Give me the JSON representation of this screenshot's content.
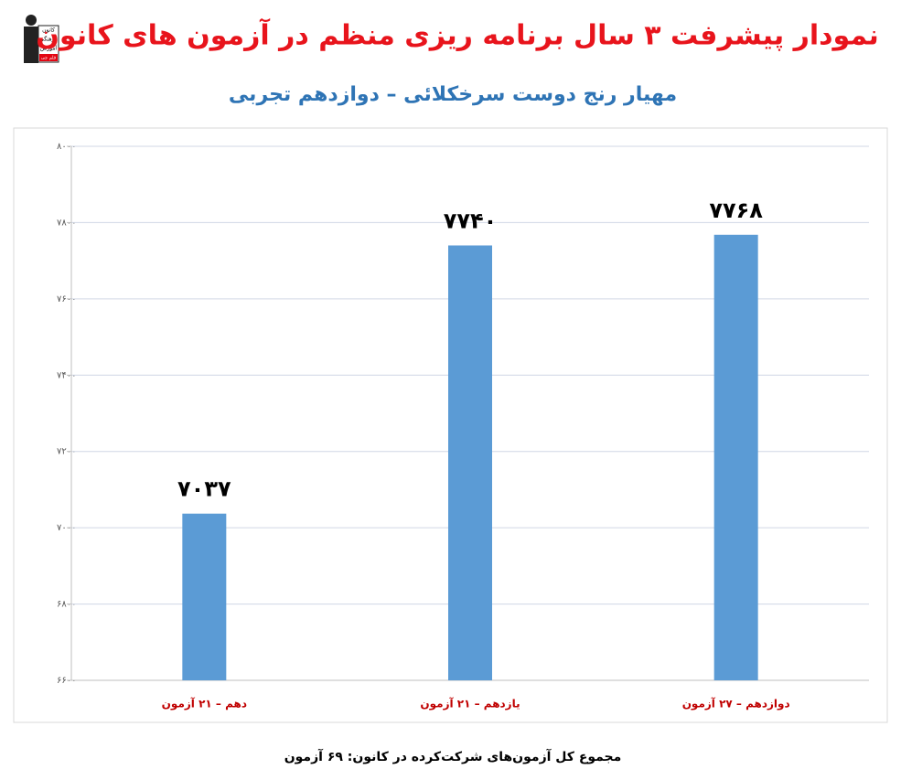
{
  "chart_data": {
    "type": "bar",
    "title": "نمودار پیشرفت ۳ سال برنامه ریزی منظم در آزمون های کانون",
    "subtitle": "مهیار رنج دوست سرخکلائی – دوازدهم تجربی",
    "categories": [
      "دهم – ۲۱ آزمون",
      "یازدهم – ۲۱ آزمون",
      "دوازدهم – ۲۷ آزمون"
    ],
    "values": [
      7037,
      7740,
      7768
    ],
    "value_labels": [
      "۷۰۳۷",
      "۷۷۴۰",
      "۷۷۶۸"
    ],
    "color": "#5b9bd5",
    "ylim": [
      6600,
      8000
    ],
    "yticks": [
      {
        "value": 6600,
        "label": "۶۶۰۰"
      },
      {
        "value": 6800,
        "label": "۶۸۰۰"
      },
      {
        "value": 7000,
        "label": "۷۰۰۰"
      },
      {
        "value": 7200,
        "label": "۷۲۰۰"
      },
      {
        "value": 7400,
        "label": "۷۴۰۰"
      },
      {
        "value": 7600,
        "label": "۷۶۰۰"
      },
      {
        "value": 7800,
        "label": "۷۸۰۰"
      },
      {
        "value": 8000,
        "label": "۸۰۰۰"
      }
    ],
    "grid": true,
    "footnote": "مجموع کل آزمون‌های شرکت‌کرده در کانون: ۶۹ آزمون",
    "logo": [
      "کانون",
      "فرهنگی",
      "آموزش",
      "قلم چی"
    ]
  }
}
